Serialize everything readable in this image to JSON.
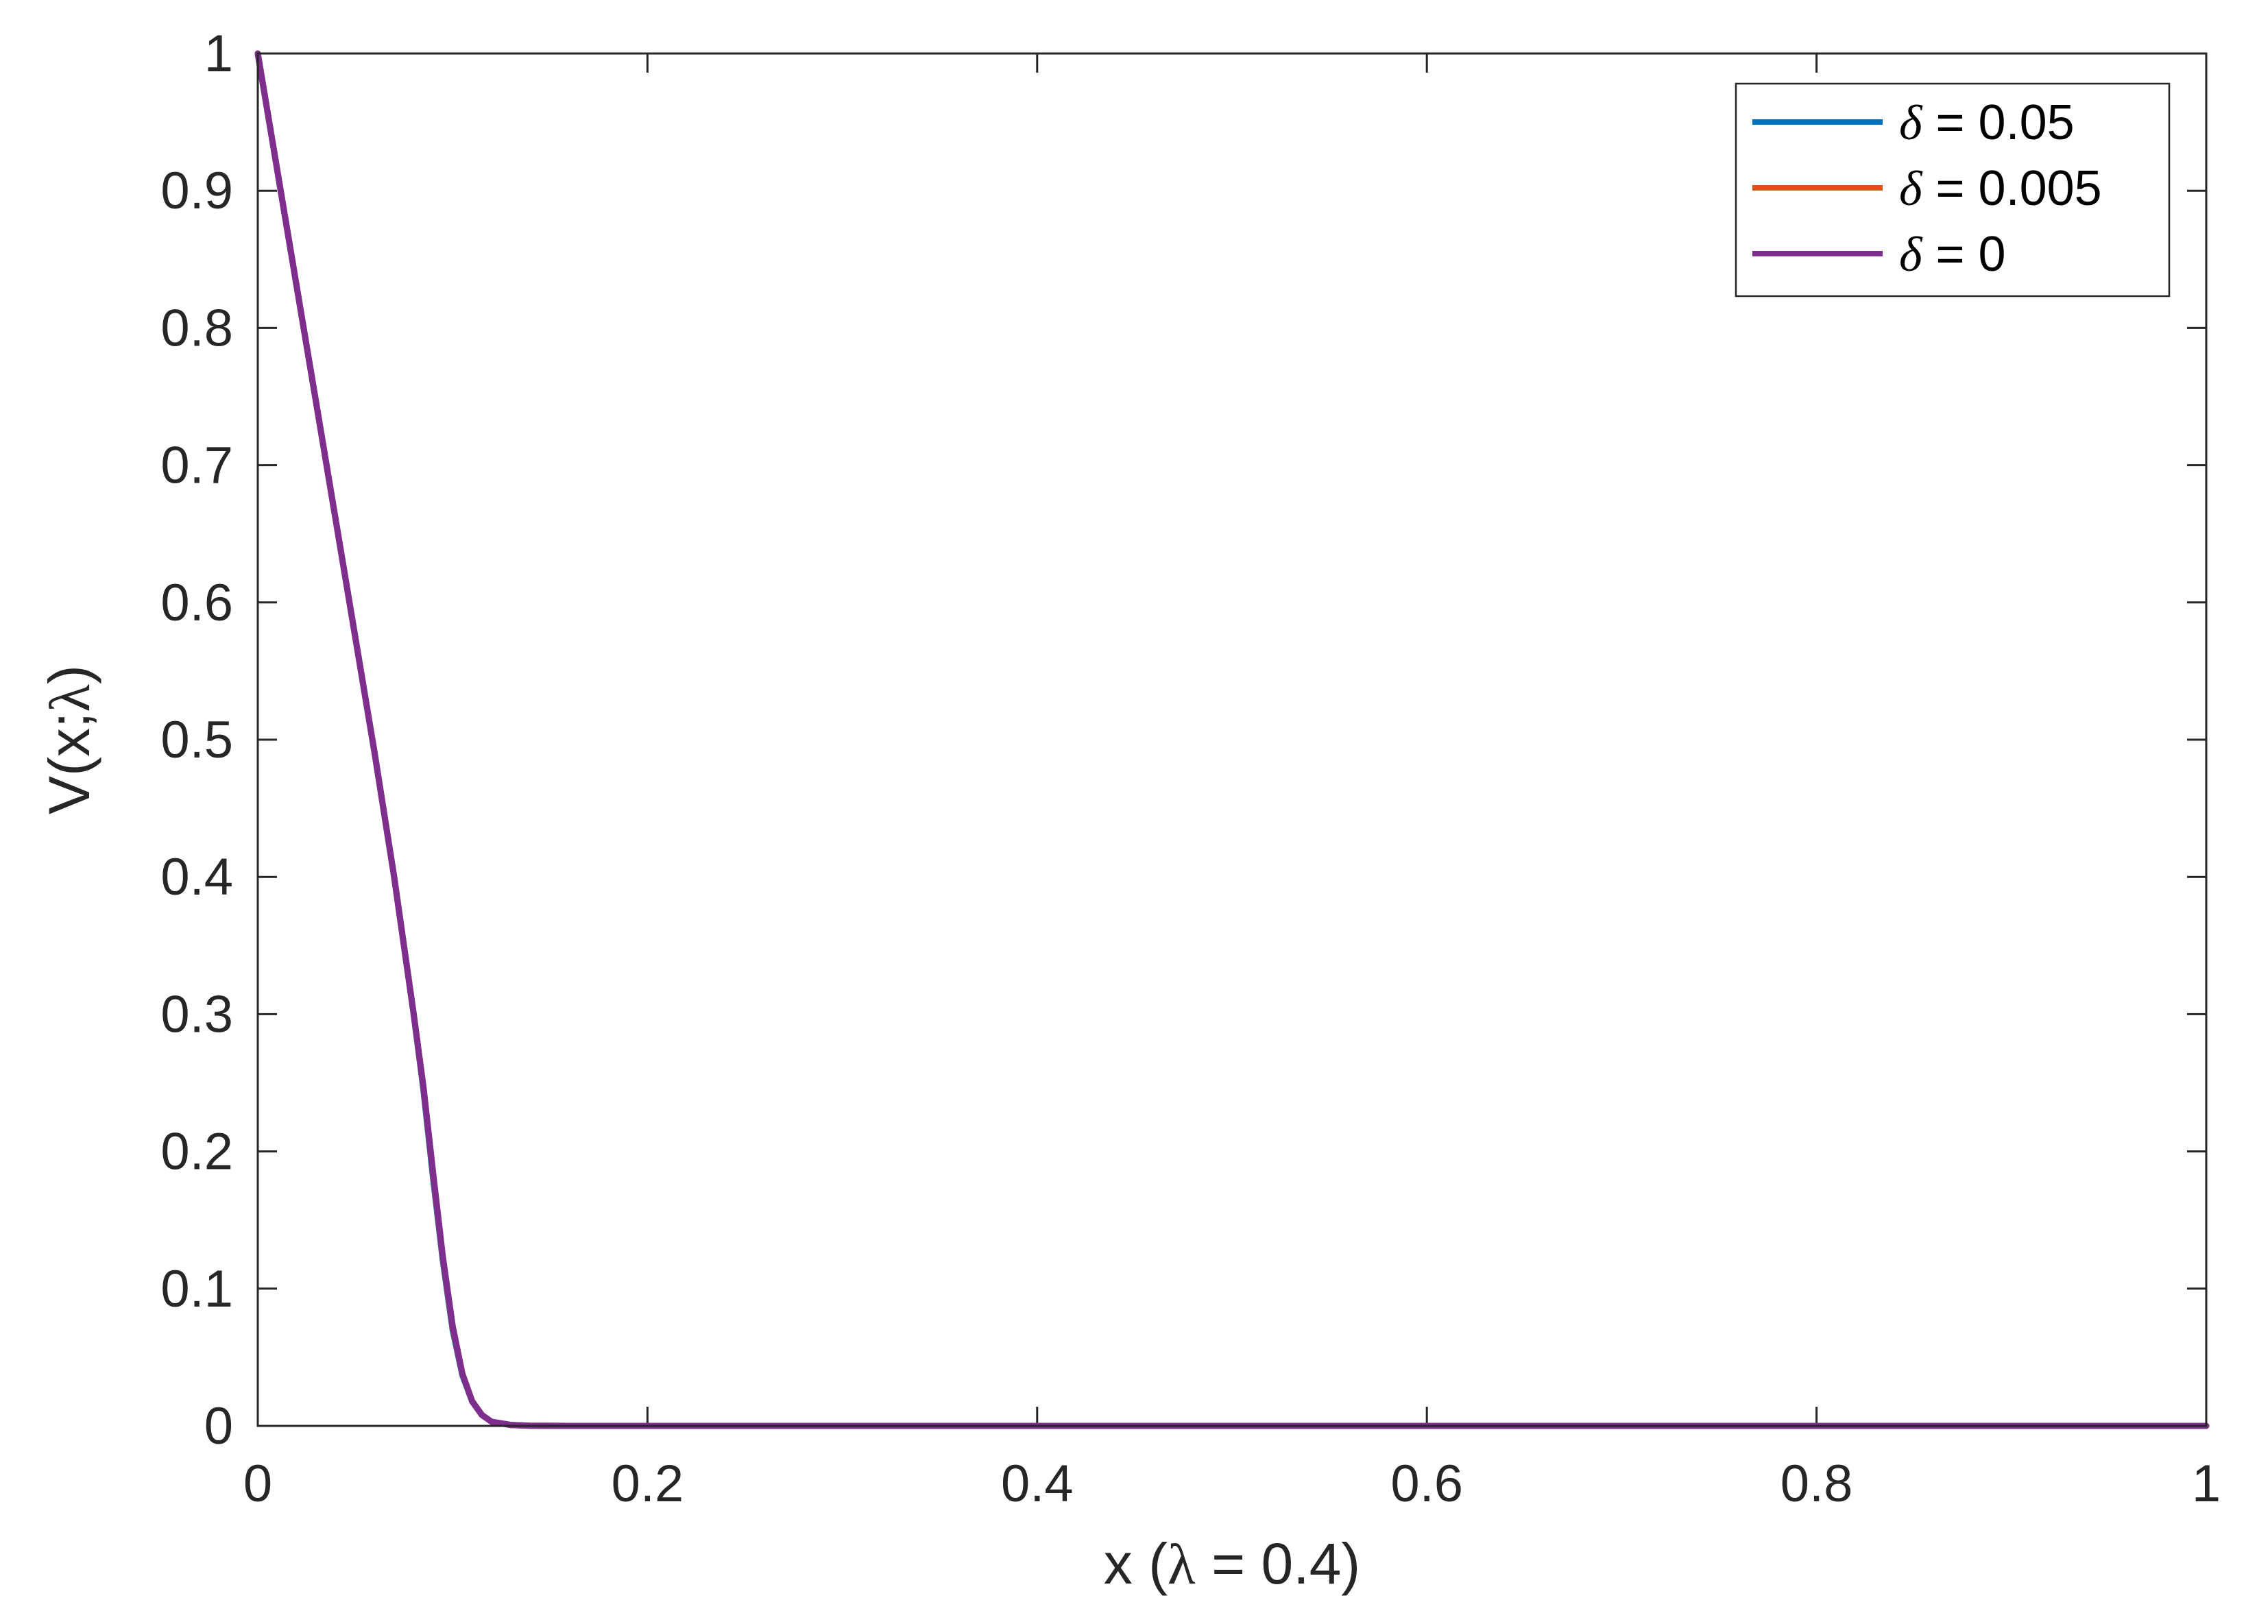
{
  "chart_data": {
    "type": "line",
    "xlabel": {
      "prefix": "x (",
      "symbol": "λ",
      "suffix": " = 0.4)"
    },
    "ylabel": {
      "prefix": "V(x;",
      "symbol": "λ",
      "suffix": ")"
    },
    "xlim": [
      0,
      1
    ],
    "ylim": [
      0,
      1
    ],
    "xticks": [
      0,
      0.2,
      0.4,
      0.6,
      0.8,
      1
    ],
    "xtick_labels": [
      "0",
      "0.2",
      "0.4",
      "0.6",
      "0.8",
      "1"
    ],
    "yticks": [
      0,
      0.1,
      0.2,
      0.3,
      0.4,
      0.5,
      0.6,
      0.7,
      0.8,
      0.9,
      1
    ],
    "ytick_labels": [
      "0",
      "0.1",
      "0.2",
      "0.3",
      "0.4",
      "0.5",
      "0.6",
      "0.7",
      "0.8",
      "0.9",
      "1"
    ],
    "grid": false,
    "legend_position": "top-right",
    "series": [
      {
        "name": "δ = 0.05",
        "symbol": "δ",
        "label_value": " = 0.05",
        "color": "#0072BD",
        "x": [
          0,
          0.01,
          0.02,
          0.03,
          0.04,
          0.05,
          0.06,
          0.07,
          0.08,
          0.085,
          0.09,
          0.095,
          0.1,
          0.105,
          0.11,
          0.115,
          0.12,
          0.13,
          0.14,
          0.16,
          0.2,
          0.3,
          0.4,
          0.5,
          0.6,
          0.7,
          0.8,
          0.9,
          1.0
        ],
        "y": [
          1.0,
          0.915,
          0.83,
          0.745,
          0.66,
          0.575,
          0.49,
          0.4,
          0.3,
          0.245,
          0.18,
          0.12,
          0.07,
          0.037,
          0.018,
          0.008,
          0.003,
          0.0007,
          0.0001,
          0,
          0,
          0,
          0,
          0,
          0,
          0,
          0,
          0,
          0
        ]
      },
      {
        "name": "δ = 0.005",
        "symbol": "δ",
        "label_value": " = 0.005",
        "color": "#D95319",
        "x": [
          0,
          0.01,
          0.02,
          0.03,
          0.04,
          0.05,
          0.06,
          0.07,
          0.08,
          0.085,
          0.09,
          0.095,
          0.1,
          0.105,
          0.11,
          0.115,
          0.12,
          0.13,
          0.14,
          0.16,
          0.2,
          0.3,
          0.4,
          0.5,
          0.6,
          0.7,
          0.8,
          0.9,
          1.0
        ],
        "y": [
          1.0,
          0.915,
          0.83,
          0.745,
          0.66,
          0.575,
          0.49,
          0.4,
          0.3,
          0.247,
          0.183,
          0.122,
          0.072,
          0.038,
          0.018,
          0.008,
          0.003,
          0.0006,
          0.0001,
          0,
          0,
          0,
          0,
          0,
          0,
          0,
          0,
          0,
          0
        ]
      },
      {
        "name": "δ = 0",
        "symbol": "δ",
        "label_value": " = 0",
        "color": "#7E2F8E",
        "x": [
          0,
          0.01,
          0.02,
          0.03,
          0.04,
          0.05,
          0.06,
          0.07,
          0.08,
          0.085,
          0.09,
          0.095,
          0.1,
          0.105,
          0.11,
          0.115,
          0.12,
          0.13,
          0.14,
          0.16,
          0.2,
          0.3,
          0.4,
          0.5,
          0.6,
          0.7,
          0.8,
          0.9,
          1.0
        ],
        "y": [
          1.0,
          0.915,
          0.83,
          0.745,
          0.66,
          0.575,
          0.49,
          0.4,
          0.3,
          0.247,
          0.184,
          0.123,
          0.073,
          0.038,
          0.018,
          0.008,
          0.003,
          0.0006,
          0.0001,
          0,
          0,
          0,
          0,
          0,
          0,
          0,
          0,
          0,
          0
        ]
      }
    ]
  }
}
